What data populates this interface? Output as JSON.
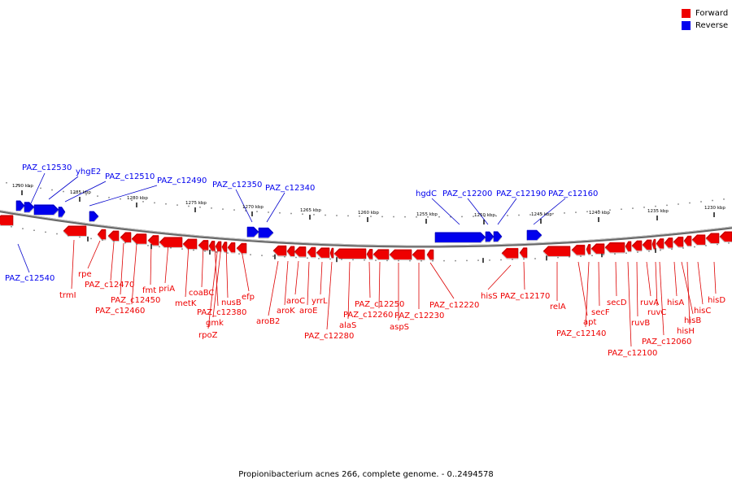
{
  "legend": [
    {
      "label": "Forward",
      "color": "#ee0000"
    },
    {
      "label": "Reverse",
      "color": "#0000ee"
    }
  ],
  "caption": "Propionibacterium acnes 266, complete genome. - 0..2494578",
  "scale": {
    "unit": "kbp",
    "ticks": [
      "1290 kbp",
      "1285 kbp",
      "1280 kbp",
      "1275 kbp",
      "1270 kbp",
      "1265 kbp",
      "1260 kbp",
      "1255 kbp",
      "1250 kbp",
      "1245 kbp",
      "1240 kbp",
      "1235 kbp",
      "1230 kbp"
    ]
  },
  "colors": {
    "forward": "#ee0000",
    "reverse": "#0000ee",
    "backbone": "#888888",
    "leader_fwd": "#dd0000",
    "leader_rev": "#0000cc"
  },
  "genes": {
    "reverse": [
      "PAZ_c12530",
      "yhgE2",
      "PAZ_c12510",
      "PAZ_c12490",
      "PAZ_c12540",
      "PAZ_c12350",
      "PAZ_c12340",
      "hgdC",
      "PAZ_c12200",
      "PAZ_c12190",
      "PAZ_c12160"
    ],
    "forward": [
      "trmI",
      "rpe",
      "PAZ_c12470",
      "PAZ_c12450",
      "PAZ_c12460",
      "fmt",
      "priA",
      "metK",
      "coaBC",
      "PAZ_c12380",
      "nusB",
      "efp",
      "gmk",
      "rpoZ",
      "aroB2",
      "aroK",
      "aroC",
      "aroE",
      "yrrL",
      "alaS",
      "PAZ_c12280",
      "PAZ_c12250",
      "PAZ_c12260",
      "PAZ_c12230",
      "aspS",
      "PAZ_c12220",
      "hisS",
      "PAZ_c12170",
      "relA",
      "apt",
      "PAZ_c12140",
      "secF",
      "secD",
      "PAZ_c12100",
      "ruvB",
      "ruvA",
      "ruvC",
      "PAZ_c12060",
      "hisA",
      "hisB",
      "hisH",
      "hisC",
      "hisD"
    ]
  }
}
